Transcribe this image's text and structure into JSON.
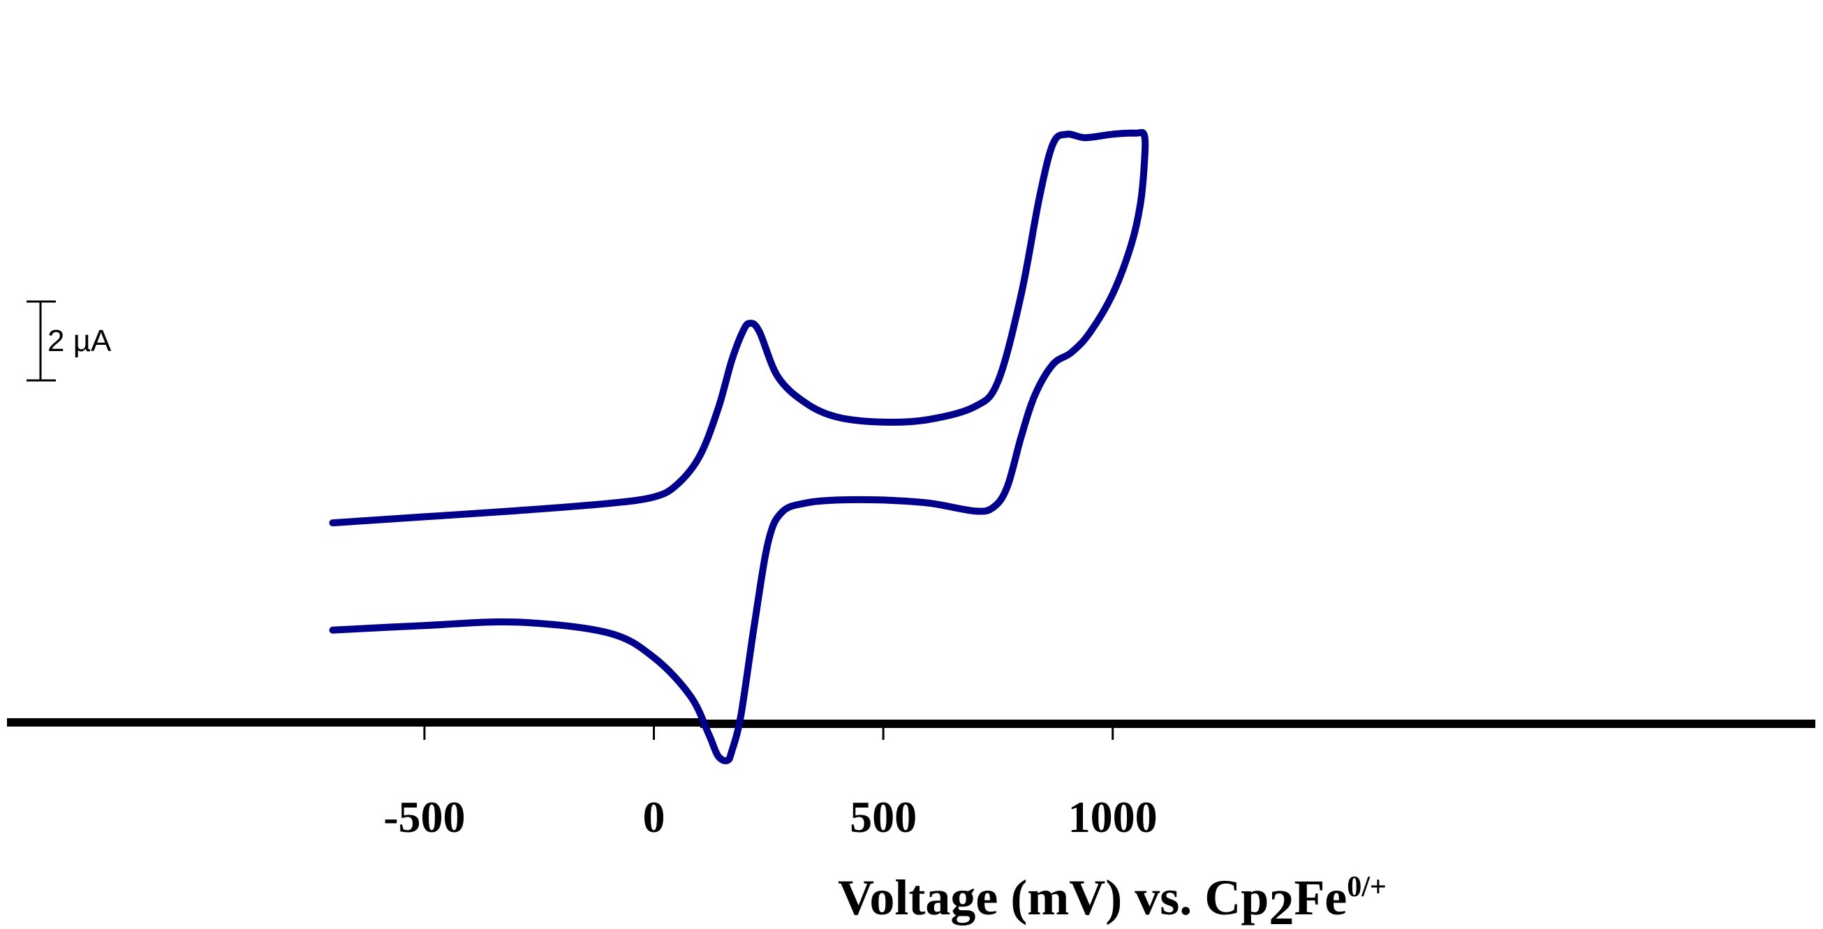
{
  "chart_data": {
    "type": "line",
    "title": "",
    "xlabel": {
      "main": "Voltage (mV) vs. Cp",
      "sub": "2",
      "species": "Fe",
      "sup": "0/+"
    },
    "ylabel": "",
    "xlim": [
      -1425,
      2548
    ],
    "ylim": [
      -12.14,
      12.29
    ],
    "x_ticks": [
      -500,
      0,
      500,
      1000
    ],
    "x_tick_labels": [
      "-500",
      "0",
      "500",
      "1000"
    ],
    "y_axis_shown": false,
    "grid": false,
    "legend": "none",
    "scale_bar": {
      "label": "2 µA",
      "value": 2,
      "unit": "µA"
    },
    "line_color": "#00008B",
    "axis_color": "#000000",
    "series": [
      {
        "values": [
          [
            -700,
            -1.46
          ],
          [
            -500,
            -1.3
          ],
          [
            -300,
            -1.14
          ],
          [
            -100,
            -0.95
          ],
          [
            0,
            -0.78
          ],
          [
            50,
            -0.46
          ],
          [
            100,
            0.3
          ],
          [
            140,
            1.54
          ],
          [
            170,
            2.82
          ],
          [
            195,
            3.6
          ],
          [
            210,
            3.79
          ],
          [
            230,
            3.57
          ],
          [
            270,
            2.39
          ],
          [
            330,
            1.7
          ],
          [
            400,
            1.32
          ],
          [
            500,
            1.19
          ],
          [
            600,
            1.26
          ],
          [
            700,
            1.6
          ],
          [
            750,
            2.26
          ],
          [
            800,
            4.51
          ],
          [
            840,
            7.08
          ],
          [
            870,
            8.51
          ],
          [
            900,
            8.76
          ],
          [
            940,
            8.67
          ],
          [
            1000,
            8.76
          ],
          [
            1050,
            8.79
          ],
          [
            1069,
            8.73
          ],
          [
            1069,
            8.0
          ],
          [
            1060,
            6.9
          ],
          [
            1040,
            5.84
          ],
          [
            1000,
            4.56
          ],
          [
            950,
            3.54
          ],
          [
            910,
            3.02
          ],
          [
            870,
            2.71
          ],
          [
            830,
            1.89
          ],
          [
            800,
            0.78
          ],
          [
            770,
            -0.52
          ],
          [
            740,
            -1.05
          ],
          [
            700,
            -1.15
          ],
          [
            600,
            -0.94
          ],
          [
            500,
            -0.86
          ],
          [
            400,
            -0.86
          ],
          [
            330,
            -0.94
          ],
          [
            280,
            -1.17
          ],
          [
            250,
            -1.92
          ],
          [
            220,
            -4.06
          ],
          [
            190,
            -6.5
          ],
          [
            170,
            -7.46
          ],
          [
            160,
            -7.71
          ],
          [
            140,
            -7.59
          ],
          [
            120,
            -7.03
          ],
          [
            80,
            -6.02
          ],
          [
            0,
            -5.0
          ],
          [
            -100,
            -4.35
          ],
          [
            -300,
            -4.07
          ],
          [
            -500,
            -4.16
          ],
          [
            -700,
            -4.28
          ]
        ]
      }
    ]
  }
}
